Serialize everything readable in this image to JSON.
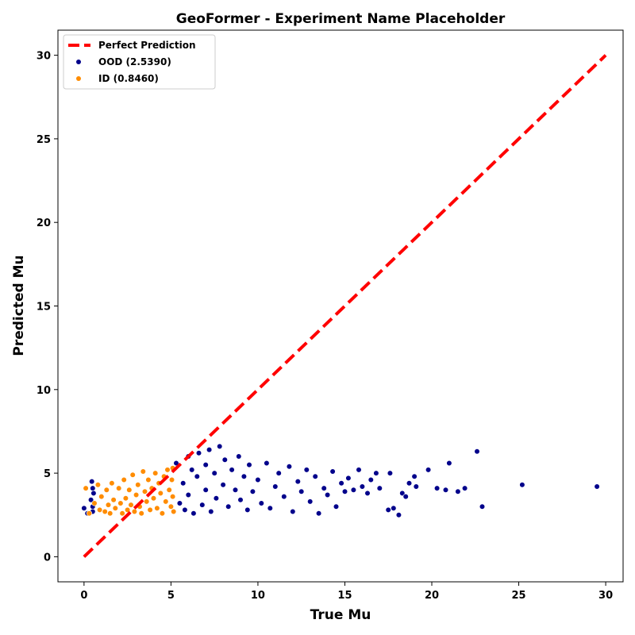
{
  "chart_data": {
    "type": "scatter",
    "title": "GeoFormer - Experiment Name Placeholder",
    "xlabel": "True Mu",
    "ylabel": "Predicted Mu",
    "xlim": [
      -1.5,
      31
    ],
    "ylim": [
      -1.5,
      31.5
    ],
    "xticks": [
      0,
      5,
      10,
      15,
      20,
      25,
      30
    ],
    "yticks": [
      0,
      5,
      10,
      15,
      20,
      25,
      30
    ],
    "grid": false,
    "legend_position": "top-left",
    "reference_line": {
      "name": "Perfect Prediction",
      "x": [
        0,
        30
      ],
      "y": [
        0,
        30
      ],
      "color": "#ff0000",
      "style": "dashed"
    },
    "series": [
      {
        "name": "OOD (2.5390)",
        "color": "#00008b",
        "points": [
          [
            0.0,
            2.9
          ],
          [
            0.2,
            2.6
          ],
          [
            0.4,
            3.4
          ],
          [
            0.45,
            4.5
          ],
          [
            0.5,
            4.1
          ],
          [
            0.5,
            3.0
          ],
          [
            0.5,
            2.7
          ],
          [
            0.55,
            3.8
          ],
          [
            5.3,
            5.6
          ],
          [
            5.5,
            3.2
          ],
          [
            5.7,
            4.4
          ],
          [
            5.8,
            2.8
          ],
          [
            6.0,
            6.0
          ],
          [
            6.0,
            3.7
          ],
          [
            6.2,
            5.2
          ],
          [
            6.3,
            2.6
          ],
          [
            6.5,
            4.8
          ],
          [
            6.6,
            6.2
          ],
          [
            6.8,
            3.1
          ],
          [
            7.0,
            5.5
          ],
          [
            7.0,
            4.0
          ],
          [
            7.2,
            6.4
          ],
          [
            7.3,
            2.7
          ],
          [
            7.5,
            5.0
          ],
          [
            7.6,
            3.5
          ],
          [
            7.8,
            6.6
          ],
          [
            8.0,
            4.3
          ],
          [
            8.1,
            5.8
          ],
          [
            8.3,
            3.0
          ],
          [
            8.5,
            5.2
          ],
          [
            8.7,
            4.0
          ],
          [
            8.9,
            6.0
          ],
          [
            9.0,
            3.4
          ],
          [
            9.2,
            4.8
          ],
          [
            9.4,
            2.8
          ],
          [
            9.5,
            5.5
          ],
          [
            9.7,
            3.9
          ],
          [
            10.0,
            4.6
          ],
          [
            10.2,
            3.2
          ],
          [
            10.5,
            5.6
          ],
          [
            10.7,
            2.9
          ],
          [
            11.0,
            4.2
          ],
          [
            11.2,
            5.0
          ],
          [
            11.5,
            3.6
          ],
          [
            11.8,
            5.4
          ],
          [
            12.0,
            2.7
          ],
          [
            12.3,
            4.5
          ],
          [
            12.5,
            3.9
          ],
          [
            12.8,
            5.2
          ],
          [
            13.0,
            3.3
          ],
          [
            13.3,
            4.8
          ],
          [
            13.5,
            2.6
          ],
          [
            13.8,
            4.1
          ],
          [
            14.0,
            3.7
          ],
          [
            14.3,
            5.1
          ],
          [
            14.5,
            3.0
          ],
          [
            14.8,
            4.4
          ],
          [
            15.0,
            3.9
          ],
          [
            15.2,
            4.7
          ],
          [
            15.5,
            4.0
          ],
          [
            15.8,
            5.2
          ],
          [
            16.0,
            4.2
          ],
          [
            16.3,
            3.8
          ],
          [
            16.5,
            4.6
          ],
          [
            16.8,
            5.0
          ],
          [
            17.0,
            4.1
          ],
          [
            17.5,
            2.8
          ],
          [
            17.6,
            5.0
          ],
          [
            17.8,
            2.9
          ],
          [
            18.1,
            2.5
          ],
          [
            18.3,
            3.8
          ],
          [
            18.5,
            3.6
          ],
          [
            18.7,
            4.4
          ],
          [
            19.0,
            4.8
          ],
          [
            19.1,
            4.2
          ],
          [
            19.8,
            5.2
          ],
          [
            20.3,
            4.1
          ],
          [
            20.8,
            4.0
          ],
          [
            21.0,
            5.6
          ],
          [
            21.5,
            3.9
          ],
          [
            21.9,
            4.1
          ],
          [
            22.6,
            6.3
          ],
          [
            22.9,
            3.0
          ],
          [
            25.2,
            4.3
          ],
          [
            29.5,
            4.2
          ]
        ]
      },
      {
        "name": "ID (0.8460)",
        "color": "#ff8c00",
        "points": [
          [
            0.1,
            4.1
          ],
          [
            0.3,
            2.6
          ],
          [
            0.6,
            3.2
          ],
          [
            0.8,
            4.3
          ],
          [
            0.9,
            2.8
          ],
          [
            1.0,
            3.6
          ],
          [
            1.2,
            2.7
          ],
          [
            1.3,
            4.0
          ],
          [
            1.4,
            3.1
          ],
          [
            1.5,
            2.6
          ],
          [
            1.6,
            4.4
          ],
          [
            1.7,
            3.4
          ],
          [
            1.8,
            2.9
          ],
          [
            2.0,
            4.1
          ],
          [
            2.1,
            3.2
          ],
          [
            2.2,
            2.6
          ],
          [
            2.3,
            4.6
          ],
          [
            2.4,
            3.5
          ],
          [
            2.5,
            2.8
          ],
          [
            2.6,
            4.0
          ],
          [
            2.7,
            3.1
          ],
          [
            2.8,
            4.9
          ],
          [
            2.9,
            2.7
          ],
          [
            3.0,
            3.7
          ],
          [
            3.1,
            4.3
          ],
          [
            3.2,
            3.0
          ],
          [
            3.3,
            2.6
          ],
          [
            3.4,
            5.1
          ],
          [
            3.5,
            3.9
          ],
          [
            3.6,
            3.3
          ],
          [
            3.7,
            4.6
          ],
          [
            3.8,
            2.8
          ],
          [
            3.9,
            4.1
          ],
          [
            4.0,
            3.5
          ],
          [
            4.1,
            5.0
          ],
          [
            4.2,
            2.9
          ],
          [
            4.3,
            4.4
          ],
          [
            4.4,
            3.8
          ],
          [
            4.5,
            2.6
          ],
          [
            4.6,
            4.8
          ],
          [
            4.7,
            3.3
          ],
          [
            4.8,
            5.2
          ],
          [
            4.9,
            4.0
          ],
          [
            5.0,
            3.0
          ],
          [
            5.05,
            4.6
          ],
          [
            5.1,
            5.3
          ],
          [
            5.1,
            3.6
          ],
          [
            5.15,
            2.7
          ]
        ]
      }
    ]
  }
}
